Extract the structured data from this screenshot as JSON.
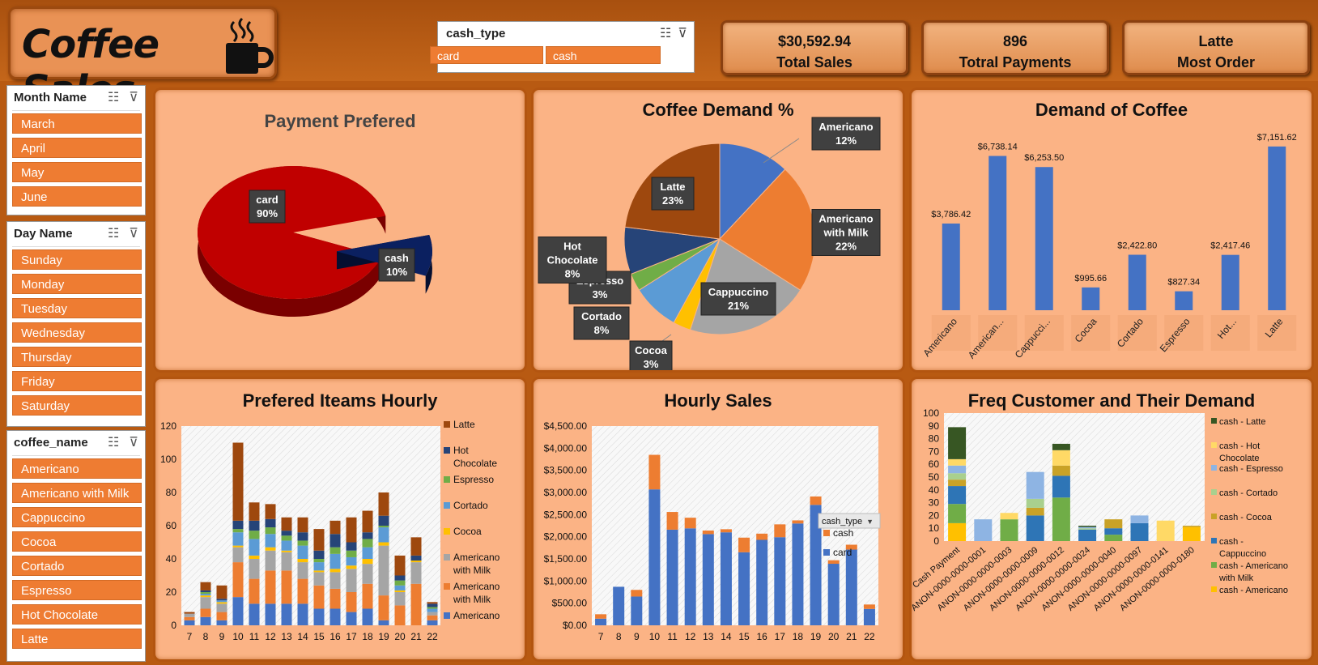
{
  "header": {
    "title": "Coffee Sales",
    "cash_type_slicer": {
      "title": "cash_type",
      "items": [
        "card",
        "cash"
      ]
    },
    "kpis": [
      {
        "value": "$30,592.94",
        "label": "Total Sales"
      },
      {
        "value": "896",
        "label": "Totral Payments"
      },
      {
        "value": "Latte",
        "label": "Most Order"
      }
    ]
  },
  "slicers": {
    "month": {
      "title": "Month Name",
      "items": [
        "March",
        "April",
        "May",
        "June"
      ]
    },
    "day": {
      "title": "Day Name",
      "items": [
        "Sunday",
        "Monday",
        "Tuesday",
        "Wednesday",
        "Thursday",
        "Friday",
        "Saturday"
      ]
    },
    "coffee": {
      "title": "coffee_name",
      "items": [
        "Americano",
        "Americano with Milk",
        "Cappuccino",
        "Cocoa",
        "Cortado",
        "Espresso",
        "Hot Chocolate",
        "Latte"
      ]
    }
  },
  "colors": {
    "accent": "#ee7c32",
    "panel": "#fbb385",
    "card": "#c00000",
    "cash": "#0b2060",
    "Americano": "#4472c4",
    "Americano with Milk": "#ed7d31",
    "Cappuccino": "#a5a5a5",
    "Cocoa": "#ffc000",
    "Cortado": "#5b9bd5",
    "Espresso": "#70ad47",
    "Hot Chocolate": "#264478",
    "Latte": "#9e480e"
  },
  "chart_data": [
    {
      "id": "payment",
      "type": "pie",
      "title": "Payment Prefered",
      "categories": [
        "card",
        "cash"
      ],
      "values": [
        90,
        10
      ],
      "labels": [
        "90%",
        "10%"
      ]
    },
    {
      "id": "demand_pct",
      "type": "pie",
      "title": "Coffee Demand %",
      "categories": [
        "Americano",
        "Americano with Milk",
        "Cappuccino",
        "Cocoa",
        "Cortado",
        "Espresso",
        "Hot Chocolate",
        "Latte"
      ],
      "values": [
        12,
        22,
        21,
        3,
        8,
        3,
        8,
        23
      ],
      "labels": [
        "12%",
        "22%",
        "21%",
        "3%",
        "8%",
        "3%",
        "8%",
        "23%"
      ]
    },
    {
      "id": "demand_coffee",
      "type": "bar",
      "title": "Demand of Coffee",
      "categories": [
        "Americano",
        "American...",
        "Cappucci...",
        "Cocoa",
        "Cortado",
        "Espresso",
        "Hot...",
        "Latte"
      ],
      "values": [
        3786.42,
        6738.14,
        6253.5,
        995.66,
        2422.8,
        827.34,
        2417.46,
        7151.62
      ],
      "labels": [
        "$3,786.42",
        "$6,738.14",
        "$6,253.50",
        "$995.66",
        "$2,422.80",
        "$827.34",
        "$2,417.46",
        "$7,151.62"
      ],
      "ylim": [
        0,
        7500
      ]
    },
    {
      "id": "items_hourly",
      "type": "bar",
      "stacked": true,
      "title": "Prefered Iteams Hourly",
      "x": [
        "7",
        "8",
        "9",
        "10",
        "11",
        "12",
        "13",
        "14",
        "15",
        "16",
        "17",
        "18",
        "19",
        "20",
        "21",
        "22"
      ],
      "ylim": [
        0,
        120
      ],
      "yticks": [
        "0",
        "20",
        "40",
        "60",
        "80",
        "100",
        "120"
      ],
      "series": [
        {
          "name": "Americano",
          "values": [
            3,
            5,
            3,
            17,
            13,
            13,
            13,
            13,
            10,
            10,
            8,
            10,
            3,
            0,
            0,
            3
          ]
        },
        {
          "name": "Americano with Milk",
          "values": [
            2,
            5,
            5,
            21,
            15,
            20,
            20,
            15,
            14,
            12,
            12,
            15,
            15,
            12,
            25,
            3
          ]
        },
        {
          "name": "Cappuccino",
          "values": [
            2,
            7,
            5,
            9,
            12,
            12,
            11,
            10,
            8,
            10,
            14,
            12,
            30,
            8,
            13,
            2
          ]
        },
        {
          "name": "Cocoa",
          "values": [
            0,
            1,
            1,
            1,
            2,
            2,
            1,
            2,
            1,
            2,
            2,
            3,
            2,
            1,
            1,
            0
          ]
        },
        {
          "name": "Cortado",
          "values": [
            0,
            1,
            1,
            8,
            10,
            8,
            6,
            8,
            5,
            9,
            5,
            7,
            9,
            3,
            0,
            2
          ]
        },
        {
          "name": "Espresso",
          "values": [
            0,
            1,
            0,
            2,
            5,
            4,
            3,
            3,
            2,
            4,
            4,
            5,
            1,
            3,
            0,
            1
          ]
        },
        {
          "name": "Hot Chocolate",
          "values": [
            0,
            1,
            1,
            5,
            6,
            5,
            3,
            5,
            5,
            8,
            5,
            4,
            6,
            3,
            3,
            2
          ]
        },
        {
          "name": "Latte",
          "values": [
            1,
            5,
            8,
            47,
            11,
            9,
            8,
            9,
            13,
            8,
            15,
            13,
            14,
            12,
            11,
            1
          ]
        }
      ]
    },
    {
      "id": "hourly_sales",
      "type": "bar",
      "stacked": true,
      "title": "Hourly Sales",
      "x": [
        "7",
        "8",
        "9",
        "10",
        "11",
        "12",
        "13",
        "14",
        "15",
        "16",
        "17",
        "18",
        "19",
        "20",
        "21",
        "22"
      ],
      "ylim": [
        0,
        4500
      ],
      "yticks": [
        "$0.00",
        "$500.00",
        "$1,000.00",
        "$1,500.00",
        "$2,000.00",
        "$2,500.00",
        "$3,000.00",
        "$3,500.00",
        "$4,000.00",
        "$4,500.00"
      ],
      "legend_title": "cash_type",
      "series": [
        {
          "name": "card",
          "values": [
            150,
            870,
            650,
            3070,
            2160,
            2190,
            2060,
            2100,
            1650,
            1930,
            1990,
            2300,
            2720,
            1390,
            1710,
            370
          ]
        },
        {
          "name": "cash",
          "values": [
            100,
            0,
            150,
            780,
            400,
            240,
            80,
            70,
            330,
            140,
            290,
            70,
            190,
            80,
            110,
            100
          ]
        }
      ]
    },
    {
      "id": "freq_customer",
      "type": "bar",
      "stacked": true,
      "title": "Freq Customer and Their Demand",
      "x": [
        "Cash Payment",
        "ANON-0000-0000-0001",
        "ANON-0000-0000-0003",
        "ANON-0000-0000-0009",
        "ANON-0000-0000-0012",
        "ANON-0000-0000-0024",
        "ANON-0000-0000-0040",
        "ANON-0000-0000-0097",
        "ANON-0000-0000-0141",
        "ANON-0000-0000-0180"
      ],
      "ylim": [
        0,
        100
      ],
      "yticks": [
        "0",
        "10",
        "20",
        "30",
        "40",
        "50",
        "60",
        "70",
        "80",
        "90",
        "100"
      ],
      "series": [
        {
          "name": "cash - Americano",
          "values": [
            14,
            0,
            0,
            0,
            0,
            0,
            0,
            0,
            0,
            11
          ]
        },
        {
          "name": "cash - Americano with Milk",
          "values": [
            15,
            0,
            17,
            0,
            34,
            0,
            5,
            0,
            0,
            0
          ]
        },
        {
          "name": "cash - Cappuccino",
          "values": [
            14,
            0,
            0,
            20,
            17,
            9,
            5,
            14,
            0,
            0
          ]
        },
        {
          "name": "cash - Cocoa",
          "values": [
            5,
            0,
            0,
            6,
            8,
            0,
            7,
            0,
            0,
            1
          ]
        },
        {
          "name": "cash - Cortado",
          "values": [
            5,
            0,
            0,
            7,
            0,
            1,
            0,
            0,
            0,
            0
          ]
        },
        {
          "name": "cash - Espresso",
          "values": [
            6,
            17,
            0,
            21,
            0,
            1,
            0,
            6,
            0,
            0
          ]
        },
        {
          "name": "cash - Hot Chocolate",
          "values": [
            5,
            0,
            5,
            0,
            12,
            0,
            0,
            0,
            16,
            0
          ]
        },
        {
          "name": "cash - Latte",
          "values": [
            25,
            0,
            0,
            0,
            5,
            1,
            0,
            0,
            0,
            0
          ]
        }
      ]
    }
  ]
}
